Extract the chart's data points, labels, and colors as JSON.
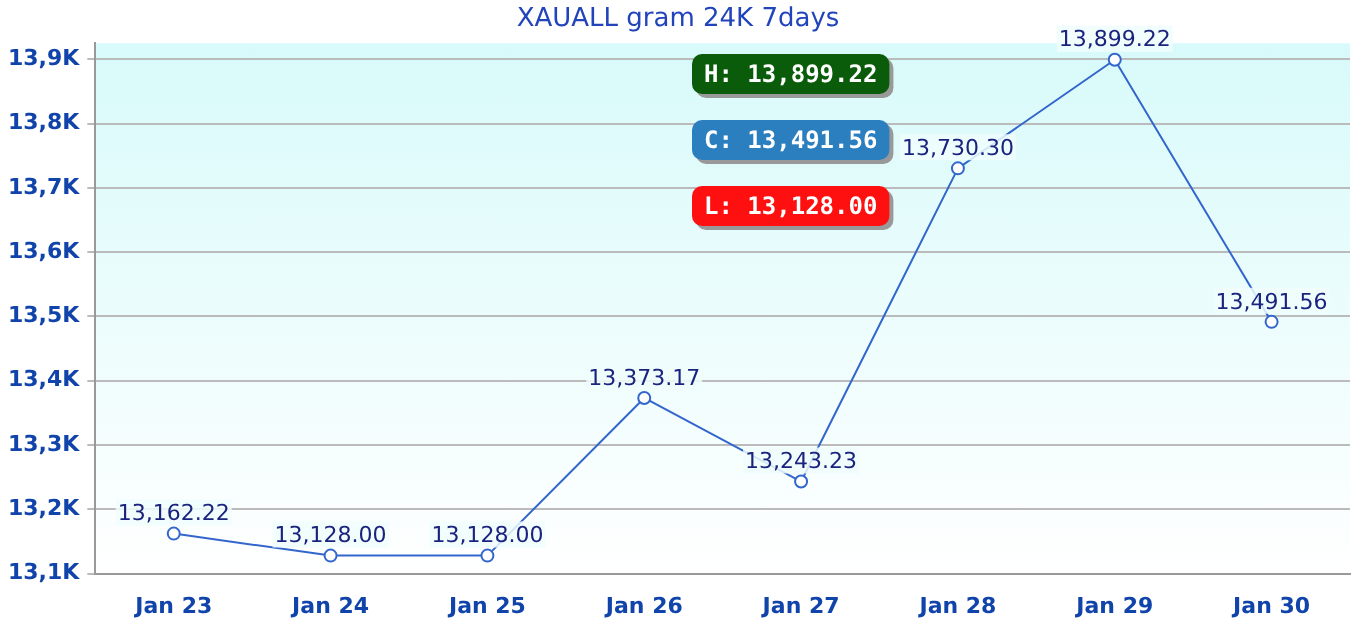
{
  "chart_data": {
    "type": "line",
    "title": "XAUALL gram 24K 7days",
    "categories": [
      "Jan 23",
      "Jan 24",
      "Jan 25",
      "Jan 26",
      "Jan 27",
      "Jan 28",
      "Jan 29",
      "Jan 30"
    ],
    "series": [
      {
        "color": "#3366cc",
        "values": [
          13162.22,
          13128.0,
          13128.0,
          13373.17,
          13243.23,
          13730.3,
          13899.22,
          13491.56
        ],
        "value_labels": [
          "13,162.22",
          "13,128.00",
          "13,128.00",
          "13,373.17",
          "13,243.23",
          "13,730.30",
          "13,899.22",
          "13,491.56"
        ]
      }
    ],
    "ylim": [
      13100,
      13925
    ],
    "yticks": [
      {
        "value": 13100,
        "label": "13,1K"
      },
      {
        "value": 13200,
        "label": "13,2K"
      },
      {
        "value": 13300,
        "label": "13,3K"
      },
      {
        "value": 13400,
        "label": "13,4K"
      },
      {
        "value": 13500,
        "label": "13,5K"
      },
      {
        "value": 13600,
        "label": "13,6K"
      },
      {
        "value": 13700,
        "label": "13,7K"
      },
      {
        "value": 13800,
        "label": "13,8K"
      },
      {
        "value": 13900,
        "label": "13,9K"
      }
    ],
    "annotations": [
      "H: 13,899.22",
      "C: 13,491.56",
      "L: 13,128.00"
    ],
    "grid": "y",
    "marker": "circle",
    "line_style": "solid",
    "legend": false
  }
}
